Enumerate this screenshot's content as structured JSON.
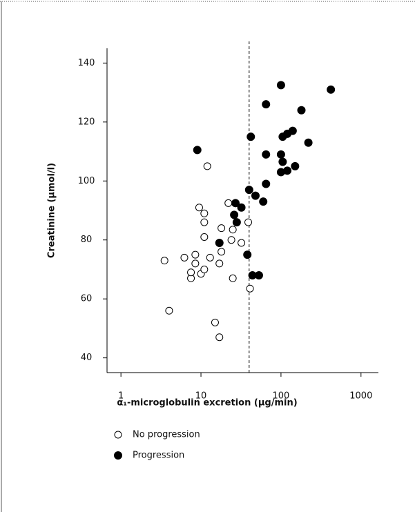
{
  "chart_data": {
    "type": "scatter",
    "xlabel": "α₁-microglobulin excretion (µg/min)",
    "ylabel": "Creatinine (µmol/l)",
    "xscale": "log",
    "xlim": [
      0.67,
      1650
    ],
    "ylim": [
      35,
      145
    ],
    "xticks": [
      1,
      10,
      100,
      1000
    ],
    "yticks": [
      40,
      60,
      80,
      100,
      120,
      140
    ],
    "vline": 40,
    "series": [
      {
        "name": "No progression",
        "color": "#000000",
        "filled": false,
        "x": [
          3.5,
          4,
          6.2,
          7.5,
          7.5,
          8.5,
          8.5,
          9.5,
          10,
          11,
          11,
          11,
          11,
          12,
          13,
          15,
          17,
          17,
          18,
          18,
          22,
          24,
          25,
          25,
          32,
          39,
          41
        ],
        "values": [
          73,
          56,
          74,
          67,
          69,
          72,
          75,
          91,
          68.5,
          70,
          86,
          89,
          81,
          105,
          74,
          52,
          72,
          47,
          76,
          84,
          92.5,
          80,
          67,
          83.5,
          79,
          86,
          63.5
        ]
      },
      {
        "name": "Progression",
        "color": "#000000",
        "filled": true,
        "x": [
          9,
          17,
          26,
          27,
          28,
          32,
          38,
          40,
          42,
          44,
          48,
          53,
          60,
          65,
          65,
          65,
          100,
          100,
          100,
          105,
          105,
          120,
          120,
          140,
          150,
          180,
          220,
          420
        ],
        "values": [
          110.5,
          79,
          88.5,
          92.5,
          86,
          91,
          75,
          97,
          115,
          68,
          95,
          68,
          93,
          99,
          109,
          126,
          103,
          109,
          132.5,
          106.5,
          115,
          103.5,
          116,
          117,
          105,
          124,
          113,
          131
        ]
      }
    ]
  }
}
